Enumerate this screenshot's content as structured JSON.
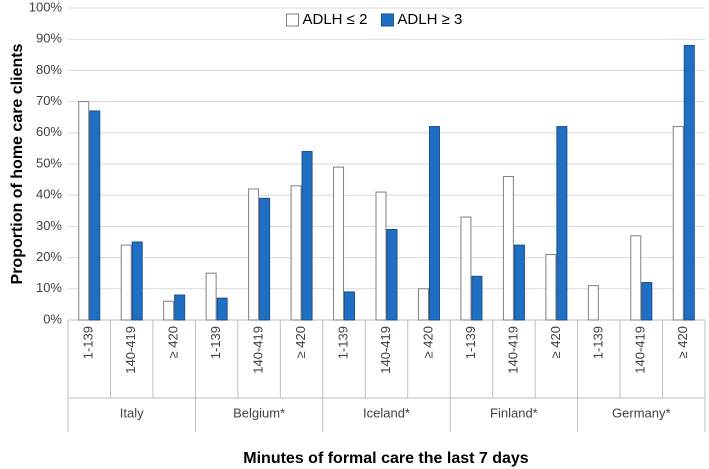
{
  "chart_data": {
    "type": "bar",
    "title": null,
    "xlabel": "Minutes of formal care the last 7 days",
    "ylabel": "Proportion of home care clients",
    "categories": [
      "1-139",
      "140-419",
      "≥ 420",
      "1-139",
      "140-419",
      "≥ 420",
      "1-139",
      "140-419",
      "≥ 420",
      "1-139",
      "140-419",
      "≥ 420",
      "1-139",
      "140-419",
      "≥ 420"
    ],
    "category_groups": [
      "Italy",
      "Belgium*",
      "Iceland*",
      "Finland*",
      "Germany*"
    ],
    "series": [
      {
        "name": "ADLH ≤ 2",
        "color": "#ffffff",
        "edgecolor": "#808080",
        "values": [
          70,
          24,
          6,
          15,
          42,
          43,
          49,
          41,
          10,
          33,
          46,
          21,
          11,
          27,
          62
        ]
      },
      {
        "name": "ADLH ≥ 3",
        "color": "#1f6fc4",
        "edgecolor": "#1b4f8a",
        "values": [
          67,
          25,
          8,
          7,
          39,
          54,
          9,
          29,
          62,
          14,
          24,
          62,
          0,
          12,
          88
        ]
      }
    ],
    "ylim": [
      0,
      100
    ],
    "yticks": [
      {
        "value": 0,
        "label": "0%"
      },
      {
        "value": 10,
        "label": "10%"
      },
      {
        "value": 20,
        "label": "20%"
      },
      {
        "value": 30,
        "label": "30%"
      },
      {
        "value": 40,
        "label": "40%"
      },
      {
        "value": 50,
        "label": "50%"
      },
      {
        "value": 60,
        "label": "60%"
      },
      {
        "value": 70,
        "label": "70%"
      },
      {
        "value": 80,
        "label": "80%"
      },
      {
        "value": 90,
        "label": "90%"
      },
      {
        "value": 100,
        "label": "100%"
      }
    ],
    "grid": true,
    "legend": "upper center"
  }
}
